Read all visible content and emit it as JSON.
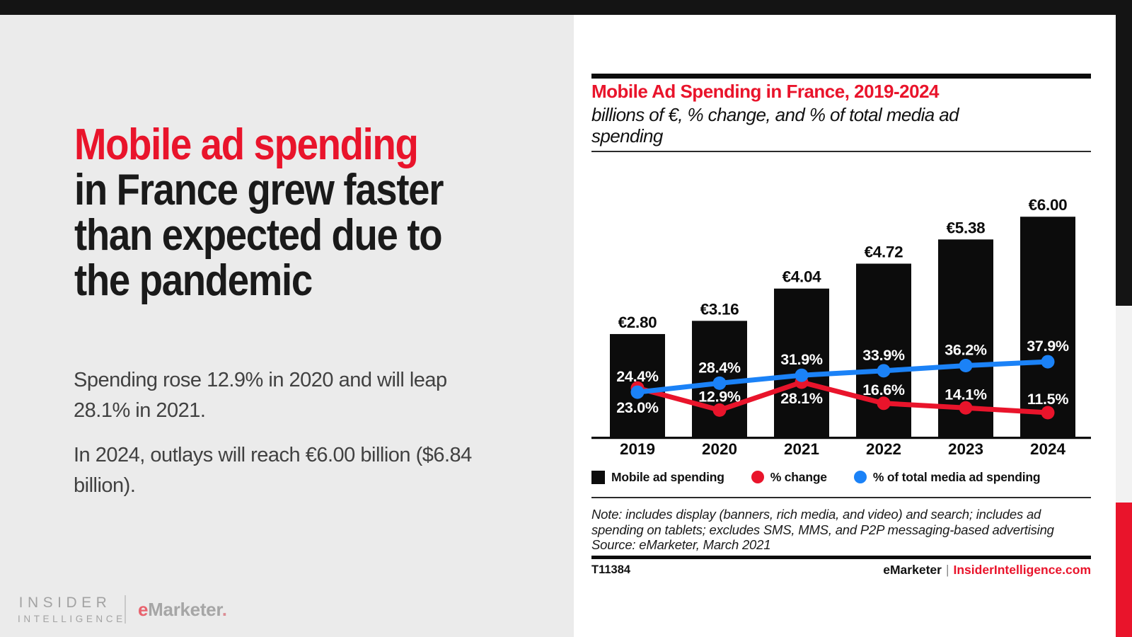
{
  "colors": {
    "brand_red": "#e9142b",
    "line_blue": "#1b82f7",
    "bar_black": "#0c0c0c",
    "left_panel_gray": "#ebebeb",
    "top_bar_black": "#141414",
    "strip_gray": "#f2f2f2",
    "body_text": "#414141"
  },
  "left_panel": {
    "headline": {
      "highlight": "Mobile ad spending",
      "rest_lines": [
        "in France grew faster",
        "than expected due to",
        "the pandemic"
      ]
    },
    "paragraphs": [
      [
        "Spending rose 12.9% in 2020 and will leap",
        "28.1% in 2021."
      ],
      [
        "In 2024, outlays will reach €6.00 billion ($6.84",
        "billion)."
      ]
    ],
    "logo": {
      "line1": "INSIDER",
      "line2": "INTELLIGENCE",
      "brand_e": "e",
      "brand_rest": "Marketer",
      "brand_dot": "."
    }
  },
  "chart_panel": {
    "title": "Mobile Ad Spending in France, 2019-2024",
    "subtitle_lines": [
      "billions of €, % change, and % of total media ad",
      "spending"
    ],
    "note_lines": [
      "Note: includes display (banners, rich media, and video) and search; includes ad",
      "spending on tablets; excludes SMS, MMS, and P2P messaging-based advertising",
      "Source: eMarketer, March 2021"
    ],
    "chart_id": "T11384",
    "footer": {
      "brand": "eMarketer",
      "separator": "|",
      "site": "InsiderIntelligence.com"
    }
  },
  "chart_data": {
    "type": "combo",
    "title": "Mobile Ad Spending in France, 2019-2024",
    "subtitle": "billions of €, % change, and % of total media ad spending",
    "categories": [
      "2019",
      "2020",
      "2021",
      "2022",
      "2023",
      "2024"
    ],
    "series": [
      {
        "name": "Mobile ad spending",
        "type": "bar",
        "unit": "billions of €",
        "color": "#0c0c0c",
        "values": [
          2.8,
          3.16,
          4.04,
          4.72,
          5.38,
          6.0
        ],
        "value_labels": [
          "€2.80",
          "€3.16",
          "€4.04",
          "€4.72",
          "€5.38",
          "€6.00"
        ]
      },
      {
        "name": "% change",
        "type": "line",
        "color": "#e9142b",
        "values": [
          23.0,
          12.9,
          28.1,
          16.6,
          14.1,
          11.5
        ],
        "value_labels": [
          "23.0%",
          "12.9%",
          "28.1%",
          "16.6%",
          "14.1%",
          "11.5%"
        ],
        "label_side": [
          "below",
          "above",
          "below",
          "above",
          "above",
          "above"
        ]
      },
      {
        "name": "% of total media ad spending",
        "type": "line",
        "color": "#1b82f7",
        "values": [
          24.4,
          28.4,
          31.9,
          33.9,
          36.2,
          37.9
        ],
        "value_labels": [
          "24.4%",
          "28.4%",
          "31.9%",
          "33.9%",
          "36.2%",
          "37.9%"
        ],
        "label_side": [
          "above",
          "above",
          "above",
          "above",
          "above",
          "above"
        ]
      }
    ],
    "legend_position": "bottom",
    "gridlines": false,
    "y_axis_shown": false
  }
}
